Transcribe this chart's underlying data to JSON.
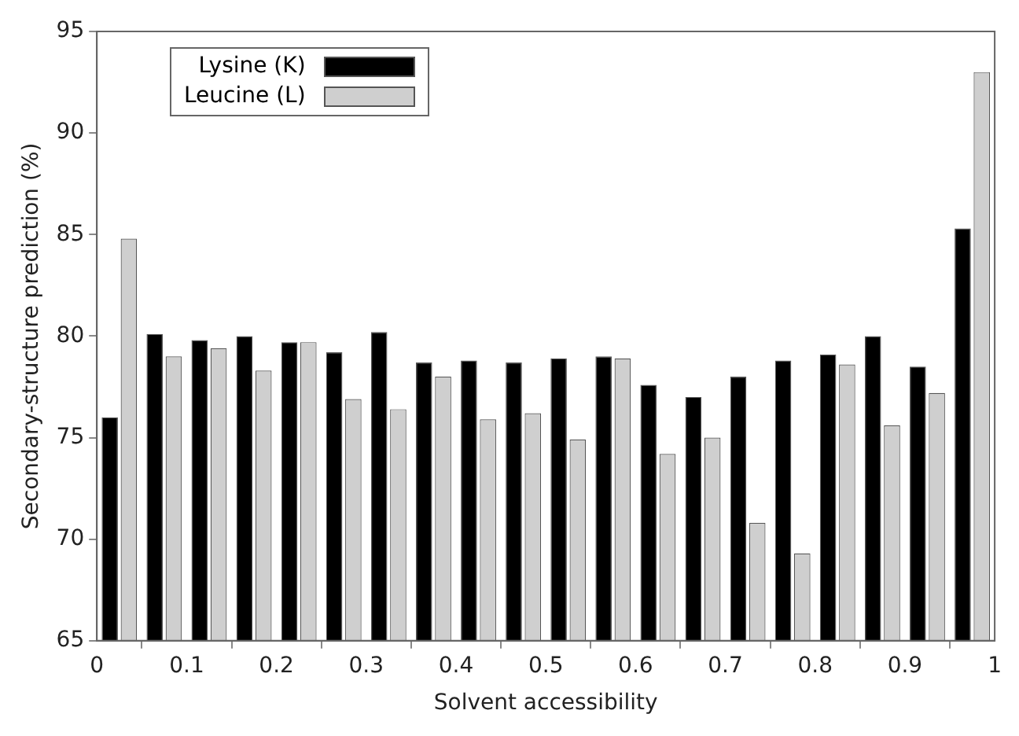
{
  "chart_data": {
    "type": "bar",
    "xlabel": "Solvent accessibility",
    "ylabel": "Secondary-structure prediction (%)",
    "x": [
      0.025,
      0.075,
      0.125,
      0.175,
      0.225,
      0.275,
      0.325,
      0.375,
      0.425,
      0.475,
      0.525,
      0.575,
      0.625,
      0.675,
      0.725,
      0.775,
      0.825,
      0.875,
      0.925,
      0.975
    ],
    "series": [
      {
        "name": "Lysine (K)",
        "color": "#000000",
        "values": [
          76.0,
          80.1,
          79.8,
          80.0,
          79.7,
          79.2,
          80.2,
          78.7,
          78.8,
          78.7,
          78.9,
          79.0,
          77.6,
          77.0,
          78.0,
          78.8,
          79.1,
          80.0,
          78.5,
          85.3
        ]
      },
      {
        "name": "Leucine (L)",
        "color": "#cfcfcf",
        "values": [
          84.8,
          79.0,
          79.4,
          78.3,
          79.7,
          76.9,
          76.4,
          78.0,
          75.9,
          76.2,
          74.9,
          78.9,
          74.2,
          75.0,
          70.8,
          69.3,
          78.6,
          75.6,
          77.2,
          93.0
        ]
      }
    ],
    "xlim": [
      0,
      1
    ],
    "xticks": [
      0,
      0.1,
      0.2,
      0.3,
      0.4,
      0.5,
      0.6,
      0.7,
      0.8,
      0.9,
      1
    ],
    "ylim": [
      65,
      95
    ],
    "yticks": [
      65,
      70,
      75,
      80,
      85,
      90,
      95
    ],
    "grid": false,
    "legend": "top left"
  }
}
